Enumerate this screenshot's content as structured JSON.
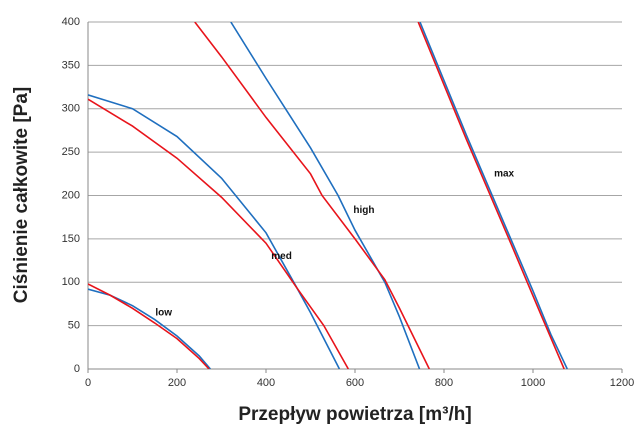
{
  "chart_data": {
    "type": "line",
    "xlabel": "Przepływ powietrza [m³/h]",
    "ylabel": "Ciśnienie całkowite [Pa]",
    "xlim": [
      0,
      1200
    ],
    "xticks": [
      0,
      200,
      400,
      600,
      800,
      1000,
      1200
    ],
    "ylim": [
      0,
      400
    ],
    "yticks": [
      0,
      50,
      100,
      150,
      200,
      250,
      300,
      350,
      400
    ],
    "grid": true,
    "series": [
      {
        "color": "#1f6fbf",
        "x": [
          0,
          50,
          100,
          150,
          200,
          250,
          275
        ],
        "values": [
          92,
          85,
          73,
          57,
          38,
          15,
          0
        ]
      },
      {
        "color": "#e8141b",
        "x": [
          0,
          50,
          100,
          150,
          200,
          250,
          272
        ],
        "values": [
          98,
          85,
          70,
          53,
          35,
          12,
          0
        ]
      },
      {
        "color": "#1f6fbf",
        "x": [
          0,
          100,
          200,
          300,
          400,
          470,
          500,
          565
        ],
        "values": [
          316,
          300,
          268,
          220,
          157,
          93,
          65,
          0
        ]
      },
      {
        "color": "#e8141b",
        "x": [
          0,
          100,
          200,
          300,
          400,
          470,
          530,
          585
        ],
        "values": [
          311,
          280,
          243,
          198,
          145,
          93,
          50,
          0
        ]
      },
      {
        "color": "#1f6fbf",
        "x": [
          321,
          400,
          450,
          500,
          562,
          600,
          667,
          700,
          745
        ],
        "values": [
          400,
          335,
          295,
          255,
          200,
          160,
          100,
          60,
          0
        ]
      },
      {
        "color": "#e8141b",
        "x": [
          240,
          300,
          400,
          500,
          526,
          600,
          667,
          700,
          767
        ],
        "values": [
          400,
          360,
          290,
          225,
          200,
          150,
          103,
          70,
          0
        ]
      },
      {
        "color": "#1f6fbf",
        "x": [
          746,
          850,
          950,
          1000,
          1040,
          1077
        ],
        "values": [
          400,
          270,
          150,
          90,
          40,
          0
        ]
      },
      {
        "color": "#e8141b",
        "x": [
          742,
          850,
          950,
          1020,
          1070
        ],
        "values": [
          400,
          265,
          145,
          60,
          0
        ]
      }
    ],
    "annotations": [
      {
        "text": "low",
        "x": 170,
        "y": 65
      },
      {
        "text": "med",
        "x": 435,
        "y": 130
      },
      {
        "text": "high",
        "x": 620,
        "y": 183
      },
      {
        "text": "max",
        "x": 935,
        "y": 225
      }
    ]
  }
}
